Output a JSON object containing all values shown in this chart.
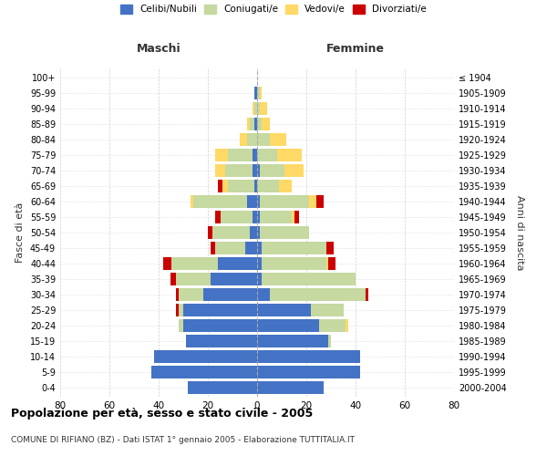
{
  "age_groups": [
    "0-4",
    "5-9",
    "10-14",
    "15-19",
    "20-24",
    "25-29",
    "30-34",
    "35-39",
    "40-44",
    "45-49",
    "50-54",
    "55-59",
    "60-64",
    "65-69",
    "70-74",
    "75-79",
    "80-84",
    "85-89",
    "90-94",
    "95-99",
    "100+"
  ],
  "birth_years": [
    "2000-2004",
    "1995-1999",
    "1990-1994",
    "1985-1989",
    "1980-1984",
    "1975-1979",
    "1970-1974",
    "1965-1969",
    "1960-1964",
    "1955-1959",
    "1950-1954",
    "1945-1949",
    "1940-1944",
    "1935-1939",
    "1930-1934",
    "1925-1929",
    "1920-1924",
    "1915-1919",
    "1910-1914",
    "1905-1909",
    "≤ 1904"
  ],
  "male": {
    "celibi": [
      28,
      43,
      42,
      29,
      30,
      30,
      22,
      19,
      16,
      5,
      3,
      2,
      4,
      1,
      2,
      2,
      0,
      1,
      0,
      1,
      0
    ],
    "coniugati": [
      0,
      0,
      0,
      0,
      2,
      2,
      10,
      14,
      19,
      12,
      15,
      13,
      22,
      11,
      11,
      10,
      4,
      2,
      1,
      0,
      0
    ],
    "vedovi": [
      0,
      0,
      0,
      0,
      0,
      0,
      0,
      0,
      0,
      0,
      0,
      0,
      1,
      2,
      4,
      5,
      3,
      1,
      1,
      0,
      0
    ],
    "divorziati": [
      0,
      0,
      0,
      0,
      0,
      1,
      1,
      2,
      3,
      2,
      2,
      2,
      0,
      2,
      0,
      0,
      0,
      0,
      0,
      0,
      0
    ]
  },
  "female": {
    "nubili": [
      27,
      42,
      42,
      29,
      25,
      22,
      5,
      2,
      2,
      2,
      1,
      1,
      1,
      0,
      1,
      0,
      0,
      0,
      0,
      0,
      0
    ],
    "coniugate": [
      0,
      0,
      0,
      1,
      11,
      13,
      39,
      38,
      26,
      26,
      20,
      13,
      20,
      9,
      10,
      8,
      5,
      2,
      1,
      1,
      0
    ],
    "vedove": [
      0,
      0,
      0,
      0,
      1,
      0,
      0,
      0,
      1,
      0,
      0,
      1,
      3,
      5,
      8,
      10,
      7,
      3,
      3,
      1,
      0
    ],
    "divorziate": [
      0,
      0,
      0,
      0,
      0,
      0,
      1,
      0,
      3,
      3,
      0,
      2,
      3,
      0,
      0,
      0,
      0,
      0,
      0,
      0,
      0
    ]
  },
  "colors": {
    "celibi": "#4472C4",
    "coniugati": "#c5d9a0",
    "vedovi": "#FFD966",
    "divorziati": "#CC0000"
  },
  "xlim": 80,
  "title": "Popolazione per età, sesso e stato civile - 2005",
  "subtitle": "COMUNE DI RIFIANO (BZ) - Dati ISTAT 1° gennaio 2005 - Elaborazione TUTTITALIA.IT",
  "ylabel_left": "Fasce di età",
  "ylabel_right": "Anni di nascita",
  "header_left": "Maschi",
  "header_right": "Femmine"
}
